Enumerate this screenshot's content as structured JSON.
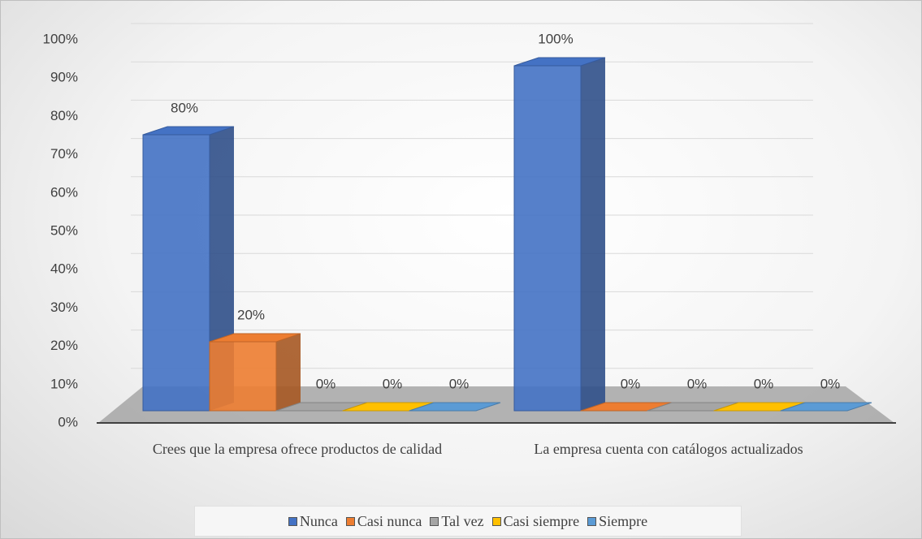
{
  "chart_data": {
    "type": "bar3d",
    "categories": [
      "Crees que la empresa ofrece productos de calidad",
      "La empresa cuenta con catálogos actualizados"
    ],
    "series": [
      {
        "name": "Nunca",
        "color": "#4472c4",
        "values": [
          80,
          100
        ],
        "value_labels": [
          "80%",
          "100%"
        ]
      },
      {
        "name": "Casi nunca",
        "color": "#ed7d31",
        "values": [
          20,
          0
        ],
        "value_labels": [
          "20%",
          "0%"
        ]
      },
      {
        "name": "Tal vez",
        "color": "#a5a5a5",
        "values": [
          0,
          0
        ],
        "value_labels": [
          "0%",
          "0%"
        ]
      },
      {
        "name": "Casi siempre",
        "color": "#ffc000",
        "values": [
          0,
          0
        ],
        "value_labels": [
          "0%",
          "0%"
        ]
      },
      {
        "name": "Siempre",
        "color": "#5b9bd5",
        "values": [
          0,
          0
        ],
        "value_labels": [
          "0%",
          "0%"
        ]
      }
    ],
    "ylim": [
      0,
      100
    ],
    "yticks": [
      {
        "value": 0,
        "label": "0%"
      },
      {
        "value": 10,
        "label": "10%"
      },
      {
        "value": 20,
        "label": "20%"
      },
      {
        "value": 30,
        "label": "30%"
      },
      {
        "value": 40,
        "label": "40%"
      },
      {
        "value": 50,
        "label": "50%"
      },
      {
        "value": 60,
        "label": "60%"
      },
      {
        "value": 70,
        "label": "70%"
      },
      {
        "value": 80,
        "label": "80%"
      },
      {
        "value": 90,
        "label": "90%"
      },
      {
        "value": 100,
        "label": "100%"
      }
    ],
    "grid": true,
    "legend": "bottom"
  }
}
